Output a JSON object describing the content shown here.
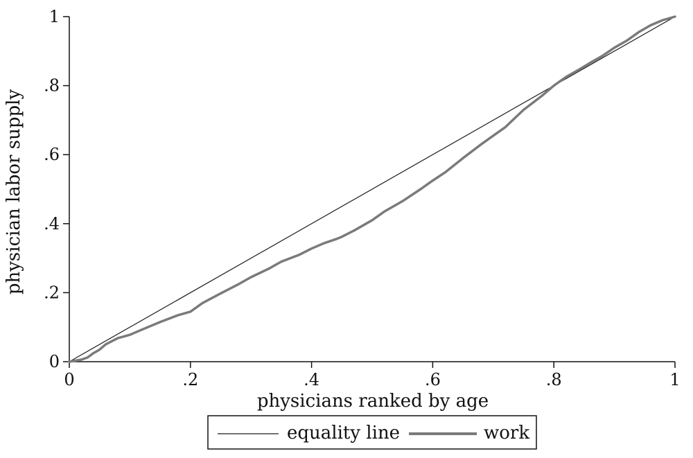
{
  "chart_data": {
    "type": "line",
    "title": "",
    "xlabel": "physicians ranked by age",
    "ylabel": "physician labor supply",
    "xlim": [
      0,
      1
    ],
    "ylim": [
      0,
      1
    ],
    "x_ticks": [
      {
        "value": 0,
        "label": "0"
      },
      {
        "value": 0.2,
        "label": ".2"
      },
      {
        "value": 0.4,
        "label": ".4"
      },
      {
        "value": 0.6,
        "label": ".6"
      },
      {
        "value": 0.8,
        "label": ".8"
      },
      {
        "value": 1,
        "label": "1"
      }
    ],
    "y_ticks": [
      {
        "value": 0,
        "label": "0"
      },
      {
        "value": 0.2,
        "label": ".2"
      },
      {
        "value": 0.4,
        "label": ".4"
      },
      {
        "value": 0.6,
        "label": ".6"
      },
      {
        "value": 0.8,
        "label": ".8"
      },
      {
        "value": 1,
        "label": "1"
      }
    ],
    "grid": false,
    "legend_position": "bottom",
    "series": [
      {
        "name": "equality line",
        "color": "#1a1a1a",
        "x": [
          0,
          1
        ],
        "y": [
          0,
          1
        ]
      },
      {
        "name": "work",
        "color": "#7a7a7a",
        "x": [
          0,
          0.01,
          0.02,
          0.03,
          0.04,
          0.05,
          0.06,
          0.08,
          0.1,
          0.12,
          0.15,
          0.18,
          0.2,
          0.22,
          0.25,
          0.28,
          0.3,
          0.33,
          0.35,
          0.38,
          0.4,
          0.42,
          0.44,
          0.45,
          0.47,
          0.5,
          0.52,
          0.55,
          0.58,
          0.6,
          0.62,
          0.65,
          0.68,
          0.7,
          0.72,
          0.75,
          0.78,
          0.8,
          0.82,
          0.84,
          0.86,
          0.88,
          0.9,
          0.92,
          0.94,
          0.96,
          0.98,
          1.0
        ],
        "y": [
          0,
          0.003,
          0.006,
          0.012,
          0.025,
          0.035,
          0.05,
          0.068,
          0.078,
          0.093,
          0.115,
          0.135,
          0.145,
          0.17,
          0.198,
          0.225,
          0.245,
          0.27,
          0.29,
          0.31,
          0.328,
          0.343,
          0.355,
          0.362,
          0.38,
          0.41,
          0.435,
          0.465,
          0.5,
          0.525,
          0.548,
          0.59,
          0.63,
          0.655,
          0.68,
          0.73,
          0.77,
          0.8,
          0.825,
          0.845,
          0.866,
          0.886,
          0.91,
          0.93,
          0.955,
          0.975,
          0.99,
          1.0
        ]
      }
    ]
  }
}
